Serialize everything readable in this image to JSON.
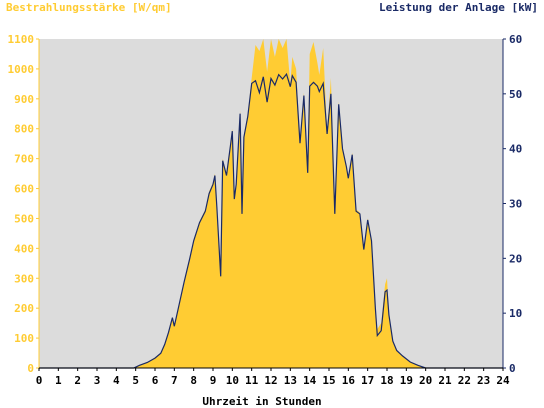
{
  "chart_data": {
    "type": "area",
    "left_axis_title": "Bestrahlungsstärke [W/qm]",
    "right_axis_title": "Leistung der Anlage [kW]",
    "xlabel": "Uhrzeit in Stunden",
    "xlim": [
      0,
      24
    ],
    "x_ticks": [
      "0",
      "1",
      "2",
      "3",
      "4",
      "5",
      "6",
      "7",
      "8",
      "9",
      "10",
      "11",
      "12",
      "13",
      "14",
      "15",
      "16",
      "17",
      "18",
      "19",
      "20",
      "21",
      "22",
      "23",
      "24"
    ],
    "left_ylim": [
      0,
      1100
    ],
    "left_y_ticks": [
      "0",
      "100",
      "200",
      "300",
      "400",
      "500",
      "600",
      "700",
      "800",
      "900",
      "1000",
      "1100"
    ],
    "right_ylim": [
      0,
      60
    ],
    "right_y_ticks": [
      "0",
      "10",
      "20",
      "30",
      "40",
      "50",
      "60"
    ],
    "grid": false,
    "colors": {
      "irradiance": "#ffcc33",
      "power": "#1a2a66",
      "plot_bg": "#dcdcdc"
    },
    "series": [
      {
        "name": "Bestrahlungsstärke [W/qm]",
        "axis": "left",
        "x": [
          0,
          4.9,
          5.2,
          5.6,
          6.0,
          6.3,
          6.5,
          6.7,
          6.9,
          7.0,
          7.2,
          7.5,
          7.8,
          8.0,
          8.3,
          8.6,
          8.8,
          9.0,
          9.1,
          9.2,
          9.4,
          9.5,
          9.7,
          9.9,
          10.0,
          10.1,
          10.2,
          10.4,
          10.5,
          10.6,
          10.8,
          11.0,
          11.2,
          11.4,
          11.6,
          11.8,
          12.0,
          12.2,
          12.4,
          12.6,
          12.8,
          13.0,
          13.1,
          13.3,
          13.5,
          13.7,
          13.9,
          14.0,
          14.2,
          14.4,
          14.5,
          14.7,
          14.9,
          15.1,
          15.3,
          15.5,
          15.7,
          15.9,
          16.0,
          16.2,
          16.4,
          16.6,
          16.8,
          17.0,
          17.2,
          17.4,
          17.5,
          17.7,
          17.9,
          18.0,
          18.1,
          18.3,
          18.5,
          18.8,
          19.2,
          19.6,
          20.0,
          20.4,
          24
        ],
        "values": [
          0,
          0,
          10,
          20,
          35,
          50,
          80,
          120,
          170,
          140,
          200,
          290,
          370,
          430,
          490,
          530,
          590,
          620,
          650,
          540,
          310,
          700,
          650,
          750,
          800,
          570,
          620,
          860,
          520,
          780,
          850,
          970,
          1080,
          1060,
          1130,
          990,
          1150,
          1040,
          1120,
          1070,
          1160,
          950,
          1040,
          1000,
          760,
          920,
          660,
          1050,
          1090,
          1020,
          980,
          1070,
          790,
          970,
          520,
          890,
          740,
          680,
          640,
          720,
          530,
          520,
          400,
          500,
          430,
          200,
          130,
          150,
          280,
          300,
          180,
          90,
          60,
          40,
          20,
          10,
          0,
          0,
          0
        ]
      },
      {
        "name": "Leistung der Anlage [kW]",
        "axis": "right",
        "x": [
          0,
          4.9,
          5.2,
          5.6,
          6.0,
          6.3,
          6.5,
          6.7,
          6.9,
          7.0,
          7.2,
          7.5,
          7.8,
          8.0,
          8.3,
          8.6,
          8.8,
          9.0,
          9.1,
          9.2,
          9.4,
          9.5,
          9.7,
          9.9,
          10.0,
          10.1,
          10.2,
          10.4,
          10.5,
          10.6,
          10.8,
          11.0,
          11.2,
          11.4,
          11.6,
          11.8,
          12.0,
          12.2,
          12.4,
          12.6,
          12.8,
          13.0,
          13.1,
          13.3,
          13.5,
          13.7,
          13.9,
          14.0,
          14.2,
          14.4,
          14.5,
          14.7,
          14.9,
          15.1,
          15.3,
          15.5,
          15.7,
          15.9,
          16.0,
          16.2,
          16.4,
          16.6,
          16.8,
          17.0,
          17.2,
          17.4,
          17.5,
          17.7,
          17.9,
          18.0,
          18.1,
          18.3,
          18.5,
          18.8,
          19.2,
          19.6,
          20.0,
          20.4,
          24
        ],
        "values": [
          0,
          0,
          0.5,
          1,
          1.8,
          2.7,
          4.3,
          6.5,
          9.2,
          7.6,
          10.8,
          15.6,
          20,
          23.2,
          26.5,
          28.6,
          31.8,
          33.5,
          35.1,
          29.2,
          16.7,
          37.8,
          35.1,
          40.5,
          43.2,
          30.8,
          33.5,
          46.4,
          28.1,
          42.1,
          45.9,
          51.9,
          52.4,
          50.2,
          53.1,
          48.5,
          52.8,
          51.6,
          53.5,
          52.7,
          53.6,
          51.3,
          53.3,
          52.1,
          41,
          49.7,
          35.6,
          51.4,
          52.1,
          51.4,
          50.4,
          51.9,
          42.7,
          50,
          28.1,
          48.1,
          40,
          36.7,
          34.6,
          38.9,
          28.6,
          28.1,
          21.6,
          27,
          23.2,
          10.8,
          5.9,
          6.8,
          13.9,
          14.2,
          9.7,
          4.9,
          3.2,
          2.2,
          1.1,
          0.5,
          0,
          0,
          0
        ]
      }
    ]
  }
}
